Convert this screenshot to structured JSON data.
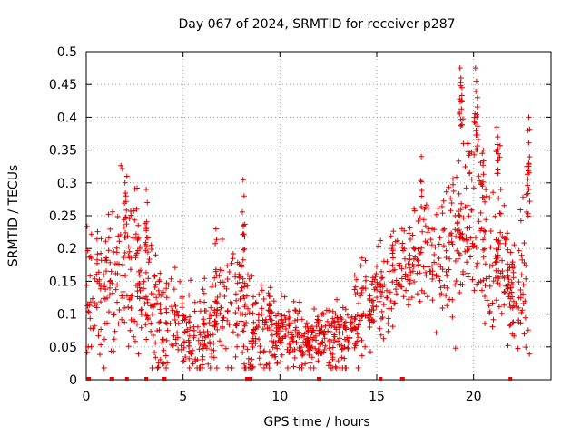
{
  "chart_data": {
    "type": "scatter",
    "title": "Day 067 of 2024, SRMTID for receiver p287",
    "xlabel": "GPS time / hours",
    "ylabel": "SRMTID / TECUs",
    "xlim": [
      0,
      24
    ],
    "ylim": [
      0,
      0.5
    ],
    "x_ticks": [
      0,
      5,
      10,
      15,
      20
    ],
    "x_tick_labels": [
      "0",
      "5",
      "10",
      "15",
      "20"
    ],
    "y_ticks": [
      0,
      0.05,
      0.1,
      0.15,
      0.2,
      0.25,
      0.3,
      0.35,
      0.4,
      0.45,
      0.5
    ],
    "y_tick_labels": [
      "0",
      "0.05",
      "0.1",
      "0.15",
      "0.2",
      "0.25",
      "0.3",
      "0.35",
      "0.4",
      "0.45",
      "0.5"
    ],
    "grid": true,
    "marker": "+",
    "color": "#e00000",
    "trend": {
      "x": [
        0,
        0.5,
        1,
        1.5,
        2,
        2.5,
        3,
        3.5,
        4,
        4.5,
        5,
        5.5,
        6,
        6.5,
        7,
        7.5,
        8,
        8.5,
        9,
        9.5,
        10,
        10.5,
        11,
        11.5,
        12,
        12.5,
        13,
        13.5,
        14,
        14.5,
        15,
        15.5,
        16,
        16.5,
        17,
        17.5,
        18,
        18.5,
        19,
        19.5,
        20,
        20.5,
        21,
        21.5,
        22,
        22.5,
        22.9
      ],
      "y": [
        0.12,
        0.15,
        0.13,
        0.15,
        0.18,
        0.15,
        0.13,
        0.11,
        0.08,
        0.09,
        0.08,
        0.07,
        0.07,
        0.08,
        0.11,
        0.1,
        0.12,
        0.08,
        0.08,
        0.09,
        0.07,
        0.07,
        0.06,
        0.06,
        0.065,
        0.06,
        0.06,
        0.07,
        0.1,
        0.12,
        0.13,
        0.14,
        0.15,
        0.17,
        0.19,
        0.18,
        0.18,
        0.18,
        0.2,
        0.23,
        0.25,
        0.22,
        0.18,
        0.17,
        0.14,
        0.13,
        0.19
      ]
    },
    "spread": {
      "x": [
        0,
        2,
        4,
        6,
        8,
        10,
        12,
        14,
        16,
        18,
        19,
        20,
        21,
        22,
        23
      ],
      "y": [
        0.04,
        0.06,
        0.04,
        0.03,
        0.05,
        0.025,
        0.02,
        0.035,
        0.04,
        0.04,
        0.07,
        0.06,
        0.05,
        0.045,
        0.06
      ]
    },
    "spikes": [
      {
        "x": 2.0,
        "y": 0.3
      },
      {
        "x": 2.05,
        "y": 0.28
      },
      {
        "x": 2.6,
        "y": 0.26
      },
      {
        "x": 3.1,
        "y": 0.29
      },
      {
        "x": 3.15,
        "y": 0.27
      },
      {
        "x": 6.7,
        "y": 0.23
      },
      {
        "x": 8.1,
        "y": 0.305
      },
      {
        "x": 8.15,
        "y": 0.28
      },
      {
        "x": 17.3,
        "y": 0.34
      },
      {
        "x": 19.3,
        "y": 0.475
      },
      {
        "x": 19.35,
        "y": 0.46
      },
      {
        "x": 19.4,
        "y": 0.445
      },
      {
        "x": 20.1,
        "y": 0.475
      },
      {
        "x": 20.15,
        "y": 0.455
      },
      {
        "x": 20.2,
        "y": 0.43
      },
      {
        "x": 20.5,
        "y": 0.35
      },
      {
        "x": 21.2,
        "y": 0.385
      },
      {
        "x": 21.25,
        "y": 0.37
      },
      {
        "x": 22.85,
        "y": 0.4
      },
      {
        "x": 22.8,
        "y": 0.38
      },
      {
        "x": 22.75,
        "y": 0.325
      }
    ],
    "zero_points": [
      0.1,
      0.15,
      1.3,
      1.35,
      2.1,
      3.1,
      4.0,
      4.05,
      8.3,
      8.4,
      8.5,
      12.0,
      12.05,
      15.2,
      16.3,
      16.35,
      21.9
    ]
  }
}
